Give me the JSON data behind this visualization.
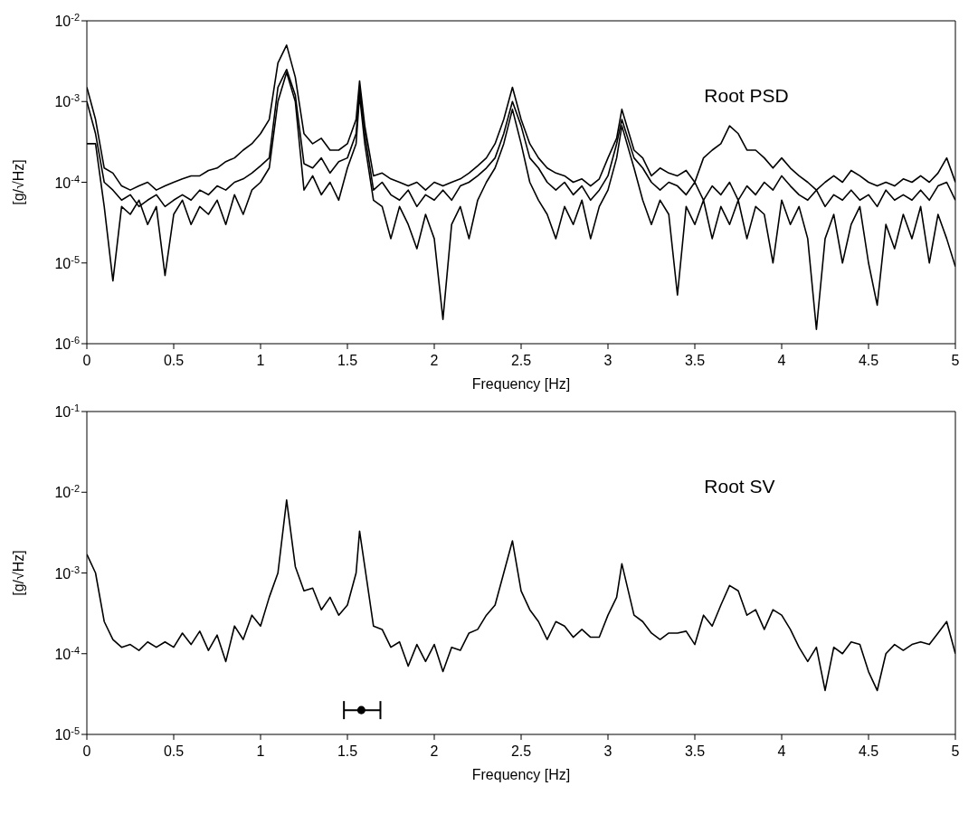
{
  "chart_data": [
    {
      "type": "line",
      "xlabel": "Frequency [Hz]",
      "ylabel": "[g/√Hz]",
      "annotations": [
        "Root PSD"
      ],
      "log": "y",
      "marker": "none",
      "xlim": [
        0,
        5
      ],
      "xticks": [
        0,
        0.5,
        1,
        1.5,
        2,
        2.5,
        3,
        3.5,
        4,
        4.5,
        5
      ],
      "ylim": [
        1e-06,
        0.01
      ],
      "yticks": [
        {
          "value": 1e-06,
          "label": "10$^{-6}$"
        },
        {
          "value": 1e-05,
          "label": "10$^{-5}$"
        },
        {
          "value": 0.0001,
          "label": "10$^{-4}$"
        },
        {
          "value": 0.001,
          "label": "10$^{-3}$"
        },
        {
          "value": 0.01,
          "label": "10$^{-2}$"
        }
      ],
      "x": [
        0,
        0.05,
        0.1,
        0.15,
        0.2,
        0.25,
        0.3,
        0.35,
        0.4,
        0.45,
        0.5,
        0.55,
        0.6,
        0.65,
        0.7,
        0.75,
        0.8,
        0.85,
        0.9,
        0.95,
        1,
        1.05,
        1.1,
        1.15,
        1.2,
        1.25,
        1.3,
        1.35,
        1.4,
        1.45,
        1.5,
        1.55,
        1.57,
        1.6,
        1.65,
        1.7,
        1.75,
        1.8,
        1.85,
        1.9,
        1.95,
        2,
        2.05,
        2.1,
        2.15,
        2.2,
        2.25,
        2.3,
        2.35,
        2.4,
        2.45,
        2.5,
        2.55,
        2.6,
        2.65,
        2.7,
        2.75,
        2.8,
        2.85,
        2.9,
        2.95,
        3,
        3.05,
        3.08,
        3.15,
        3.2,
        3.25,
        3.3,
        3.35,
        3.4,
        3.45,
        3.5,
        3.55,
        3.6,
        3.65,
        3.7,
        3.75,
        3.8,
        3.85,
        3.9,
        3.95,
        4,
        4.05,
        4.1,
        4.15,
        4.2,
        4.25,
        4.3,
        4.35,
        4.4,
        4.45,
        4.5,
        4.55,
        4.6,
        4.65,
        4.7,
        4.75,
        4.8,
        4.85,
        4.9,
        4.95,
        5
      ],
      "series": [
        {
          "color": "#000000",
          "values": [
            0.0015,
            0.0006,
            0.00015,
            0.00013,
            9e-05,
            8e-05,
            9e-05,
            0.0001,
            8e-05,
            9e-05,
            0.0001,
            0.00011,
            0.00012,
            0.00012,
            0.00014,
            0.00015,
            0.00018,
            0.0002,
            0.00025,
            0.0003,
            0.0004,
            0.0006,
            0.003,
            0.005,
            0.002,
            0.0004,
            0.0003,
            0.00035,
            0.00025,
            0.00025,
            0.0003,
            0.0006,
            0.0018,
            0.0005,
            0.00012,
            0.00013,
            0.00011,
            0.0001,
            9e-05,
            0.0001,
            8e-05,
            0.0001,
            9e-05,
            0.0001,
            0.00011,
            0.00013,
            0.00016,
            0.0002,
            0.0003,
            0.0006,
            0.0015,
            0.0006,
            0.0003,
            0.0002,
            0.00015,
            0.00013,
            0.00012,
            0.0001,
            0.00011,
            9e-05,
            0.00011,
            0.0002,
            0.00035,
            0.0008,
            0.00025,
            0.0002,
            0.00012,
            0.00015,
            0.00013,
            0.00012,
            0.00014,
            0.0001,
            0.0002,
            0.00025,
            0.0003,
            0.0005,
            0.0004,
            0.00025,
            0.00025,
            0.0002,
            0.00015,
            0.0002,
            0.00015,
            0.00012,
            0.0001,
            8e-05,
            0.0001,
            0.00012,
            0.0001,
            0.00014,
            0.00012,
            0.0001,
            9e-05,
            0.0001,
            9e-05,
            0.00011,
            0.0001,
            0.00012,
            0.0001,
            0.00013,
            0.0002,
            0.0001
          ]
        },
        {
          "color": "#000000",
          "values": [
            0.001,
            0.0004,
            0.0001,
            8e-05,
            6e-05,
            7e-05,
            5e-05,
            6e-05,
            7e-05,
            5e-05,
            6e-05,
            7e-05,
            6e-05,
            8e-05,
            7e-05,
            9e-05,
            8e-05,
            0.0001,
            0.00011,
            0.00013,
            0.00016,
            0.0002,
            0.0015,
            0.0025,
            0.0012,
            0.00017,
            0.00015,
            0.0002,
            0.00013,
            0.00018,
            0.0002,
            0.0004,
            0.0015,
            0.0004,
            8e-05,
            0.0001,
            7e-05,
            6e-05,
            8e-05,
            5e-05,
            7e-05,
            6e-05,
            8e-05,
            6e-05,
            9e-05,
            0.0001,
            0.00012,
            0.00015,
            0.0002,
            0.0004,
            0.001,
            0.0005,
            0.0002,
            0.00015,
            0.0001,
            8e-05,
            0.0001,
            7e-05,
            9e-05,
            6e-05,
            8e-05,
            0.00012,
            0.0003,
            0.0006,
            0.0002,
            0.00015,
            0.0001,
            8e-05,
            0.0001,
            9e-05,
            7e-05,
            0.0001,
            6e-05,
            9e-05,
            7e-05,
            0.0001,
            6e-05,
            9e-05,
            7e-05,
            0.0001,
            8e-05,
            0.00012,
            9e-05,
            7e-05,
            6e-05,
            8e-05,
            5e-05,
            7e-05,
            6e-05,
            8e-05,
            6e-05,
            7e-05,
            5e-05,
            8e-05,
            6e-05,
            7e-05,
            6e-05,
            8e-05,
            6e-05,
            9e-05,
            0.0001,
            6e-05
          ]
        },
        {
          "color": "#000000",
          "values": [
            0.0003,
            0.0003,
            5e-05,
            6e-06,
            5e-05,
            4e-05,
            6e-05,
            3e-05,
            5e-05,
            7e-06,
            4e-05,
            6e-05,
            3e-05,
            5e-05,
            4e-05,
            6e-05,
            3e-05,
            7e-05,
            4e-05,
            8e-05,
            0.0001,
            0.00015,
            0.001,
            0.0023,
            0.001,
            8e-05,
            0.00012,
            7e-05,
            0.0001,
            6e-05,
            0.00015,
            0.0003,
            0.0012,
            0.0003,
            6e-05,
            5e-05,
            2e-05,
            5e-05,
            3e-05,
            1.5e-05,
            4e-05,
            2e-05,
            2e-06,
            3e-05,
            5e-05,
            2e-05,
            6e-05,
            0.0001,
            0.00015,
            0.0003,
            0.0008,
            0.0003,
            0.0001,
            6e-05,
            4e-05,
            2e-05,
            5e-05,
            3e-05,
            6e-05,
            2e-05,
            5e-05,
            8e-05,
            0.0002,
            0.0005,
            0.00015,
            6e-05,
            3e-05,
            6e-05,
            4e-05,
            4e-06,
            5e-05,
            3e-05,
            6e-05,
            2e-05,
            5e-05,
            3e-05,
            6e-05,
            2e-05,
            5e-05,
            4e-05,
            1e-05,
            6e-05,
            3e-05,
            5e-05,
            2e-05,
            1.5e-06,
            2e-05,
            4e-05,
            1e-05,
            3e-05,
            5e-05,
            1e-05,
            3e-06,
            3e-05,
            1.5e-05,
            4e-05,
            2e-05,
            5e-05,
            1e-05,
            4e-05,
            2e-05,
            9e-06
          ]
        }
      ]
    },
    {
      "type": "line",
      "xlabel": "Frequency [Hz]",
      "ylabel": "[g/√Hz]",
      "annotations": [
        "Root SV"
      ],
      "log": "y",
      "marker": "none",
      "xlim": [
        0,
        5
      ],
      "xticks": [
        0,
        0.5,
        1,
        1.5,
        2,
        2.5,
        3,
        3.5,
        4,
        4.5,
        5
      ],
      "ylim": [
        1e-05,
        0.1
      ],
      "yticks": [
        {
          "value": 1e-05,
          "label": "10$^{-5}$"
        },
        {
          "value": 0.0001,
          "label": "10$^{-4}$"
        },
        {
          "value": 0.001,
          "label": "10$^{-3}$"
        },
        {
          "value": 0.01,
          "label": "10$^{-2}$"
        },
        {
          "value": 0.1,
          "label": "10$^{-1}$"
        }
      ],
      "x": [
        0,
        0.05,
        0.1,
        0.15,
        0.2,
        0.25,
        0.3,
        0.35,
        0.4,
        0.45,
        0.5,
        0.55,
        0.6,
        0.65,
        0.7,
        0.75,
        0.8,
        0.85,
        0.9,
        0.95,
        1,
        1.05,
        1.1,
        1.15,
        1.2,
        1.25,
        1.3,
        1.35,
        1.4,
        1.45,
        1.5,
        1.55,
        1.57,
        1.6,
        1.65,
        1.7,
        1.75,
        1.8,
        1.85,
        1.9,
        1.95,
        2,
        2.05,
        2.1,
        2.15,
        2.2,
        2.25,
        2.3,
        2.35,
        2.4,
        2.45,
        2.5,
        2.55,
        2.6,
        2.65,
        2.7,
        2.75,
        2.8,
        2.85,
        2.9,
        2.95,
        3,
        3.05,
        3.08,
        3.15,
        3.2,
        3.25,
        3.3,
        3.35,
        3.4,
        3.45,
        3.5,
        3.55,
        3.6,
        3.65,
        3.7,
        3.75,
        3.8,
        3.85,
        3.9,
        3.95,
        4,
        4.05,
        4.1,
        4.15,
        4.2,
        4.25,
        4.3,
        4.35,
        4.4,
        4.45,
        4.5,
        4.55,
        4.6,
        4.65,
        4.7,
        4.75,
        4.8,
        4.85,
        4.9,
        4.95,
        5
      ],
      "series": [
        {
          "color": "#000000",
          "values": [
            0.0017,
            0.001,
            0.00025,
            0.00015,
            0.00012,
            0.00013,
            0.00011,
            0.00014,
            0.00012,
            0.00014,
            0.00012,
            0.00018,
            0.00013,
            0.00019,
            0.00011,
            0.00017,
            8e-05,
            0.00022,
            0.00015,
            0.0003,
            0.00022,
            0.0005,
            0.001,
            0.008,
            0.0012,
            0.0006,
            0.00065,
            0.00035,
            0.0005,
            0.0003,
            0.0004,
            0.001,
            0.0033,
            0.0012,
            0.00022,
            0.0002,
            0.00012,
            0.00014,
            7e-05,
            0.00013,
            8e-05,
            0.00013,
            6e-05,
            0.00012,
            0.00011,
            0.00018,
            0.0002,
            0.0003,
            0.0004,
            0.001,
            0.0025,
            0.0006,
            0.00035,
            0.00025,
            0.00015,
            0.00025,
            0.00022,
            0.00016,
            0.0002,
            0.00016,
            0.00016,
            0.0003,
            0.0005,
            0.0013,
            0.0003,
            0.00025,
            0.00018,
            0.00015,
            0.00018,
            0.00018,
            0.00019,
            0.00013,
            0.0003,
            0.00022,
            0.0004,
            0.0007,
            0.0006,
            0.0003,
            0.00035,
            0.0002,
            0.00035,
            0.0003,
            0.0002,
            0.00012,
            8e-05,
            0.00012,
            3.5e-05,
            0.00012,
            0.0001,
            0.00014,
            0.00013,
            6e-05,
            3.5e-05,
            0.0001,
            0.00013,
            0.00011,
            0.00013,
            0.00014,
            0.00013,
            0.00018,
            0.00025,
            0.0001
          ]
        },
        {
          "type": "scatter",
          "color": "#000000",
          "marker": "circle",
          "x": [
            1.58
          ],
          "values": [
            2e-05
          ],
          "xerrors": [
            [
              1.48,
              1.69
            ]
          ]
        }
      ]
    }
  ]
}
